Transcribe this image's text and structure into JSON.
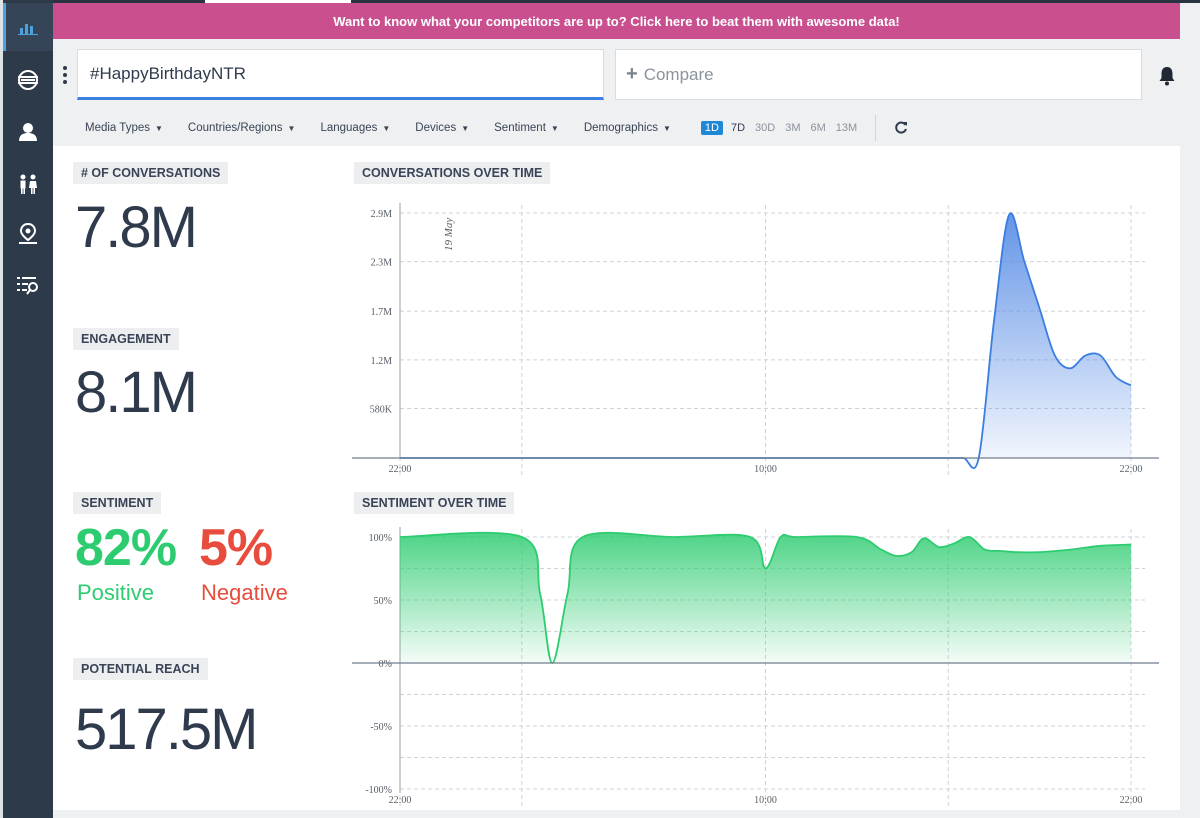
{
  "banner": {
    "text": "Want to know what your competitors are up to? Click here to beat them with awesome data!"
  },
  "search": {
    "query": "#HappyBirthdayNTR"
  },
  "compare": {
    "label": "Compare"
  },
  "filters": [
    "Media Types",
    "Countries/Regions",
    "Languages",
    "Devices",
    "Sentiment",
    "Demographics"
  ],
  "ranges": [
    {
      "label": "1D",
      "active": true
    },
    {
      "label": "7D",
      "active": false
    },
    {
      "label": "30D",
      "active": false
    },
    {
      "label": "3M",
      "active": false
    },
    {
      "label": "6M",
      "active": false
    },
    {
      "label": "13M",
      "active": false
    }
  ],
  "metrics": {
    "conversations": {
      "label": "# OF CONVERSATIONS",
      "value": "7.8M"
    },
    "engagement": {
      "label": "ENGAGEMENT",
      "value": "8.1M"
    },
    "sentiment": {
      "label": "SENTIMENT",
      "positive_value": "82%",
      "positive_label": "Positive",
      "negative_value": "5%",
      "negative_label": "Negative"
    },
    "reach": {
      "label": "POTENTIAL REACH",
      "value": "517.5M"
    }
  },
  "sidebar": {
    "items": [
      "bar-chart-icon",
      "globe-icon",
      "user-icon",
      "people-icon",
      "location-icon",
      "search-list-icon"
    ]
  },
  "colors": {
    "accent": "#1e88d6",
    "banner": "#c94f8f",
    "sidebar": "#2c3a4a",
    "positive": "#2ecc71",
    "negative": "#e74c3c",
    "conversation_line": "#3b7de0"
  },
  "chart_data": [
    {
      "type": "area",
      "title": "CONVERSATIONS OVER TIME",
      "x_ticks": [
        "22:00",
        "10:00",
        "22:00"
      ],
      "y_ticks": [
        "580K",
        "1.2M",
        "1.7M",
        "2.3M",
        "2.9M"
      ],
      "y_tick_values": [
        580000,
        1150000,
        1720000,
        2300000,
        2870000
      ],
      "ylim": [
        0,
        2870000
      ],
      "annotation": "19 May",
      "x": [
        0,
        2,
        4,
        6,
        8,
        10,
        12,
        14,
        16,
        16.5,
        17,
        17.5,
        18,
        18.5,
        19,
        19.5,
        20,
        20.5,
        21,
        21.5,
        22,
        22.5,
        23,
        23.5,
        24
      ],
      "values": [
        0,
        0,
        0,
        0,
        0,
        0,
        0,
        0,
        0,
        0,
        0,
        0,
        0,
        0,
        0,
        1600000,
        2850000,
        2300000,
        1750000,
        1200000,
        1050000,
        1200000,
        1200000,
        950000,
        850000
      ],
      "grid": true
    },
    {
      "type": "area",
      "title": "SENTIMENT OVER TIME",
      "x_ticks": [
        "22:00",
        "10:00",
        "22:00"
      ],
      "y_ticks": [
        "-100%",
        "-50%",
        "0%",
        "50%",
        "100%"
      ],
      "y_tick_values": [
        -100,
        -50,
        0,
        50,
        100
      ],
      "ylim": [
        -100,
        100
      ],
      "x": [
        0,
        4,
        4.6,
        5,
        5.5,
        6,
        9,
        11.5,
        12,
        12.5,
        13,
        15,
        15.8,
        16.3,
        16.8,
        17.2,
        17.7,
        18.2,
        18.7,
        19.2,
        19.7,
        20.2,
        21,
        22,
        23,
        24
      ],
      "values": [
        100,
        100,
        55,
        0,
        55,
        100,
        100,
        100,
        75,
        100,
        100,
        100,
        90,
        85,
        88,
        99,
        92,
        95,
        100,
        90,
        89,
        88,
        88,
        90,
        93,
        94
      ],
      "grid": true
    }
  ]
}
